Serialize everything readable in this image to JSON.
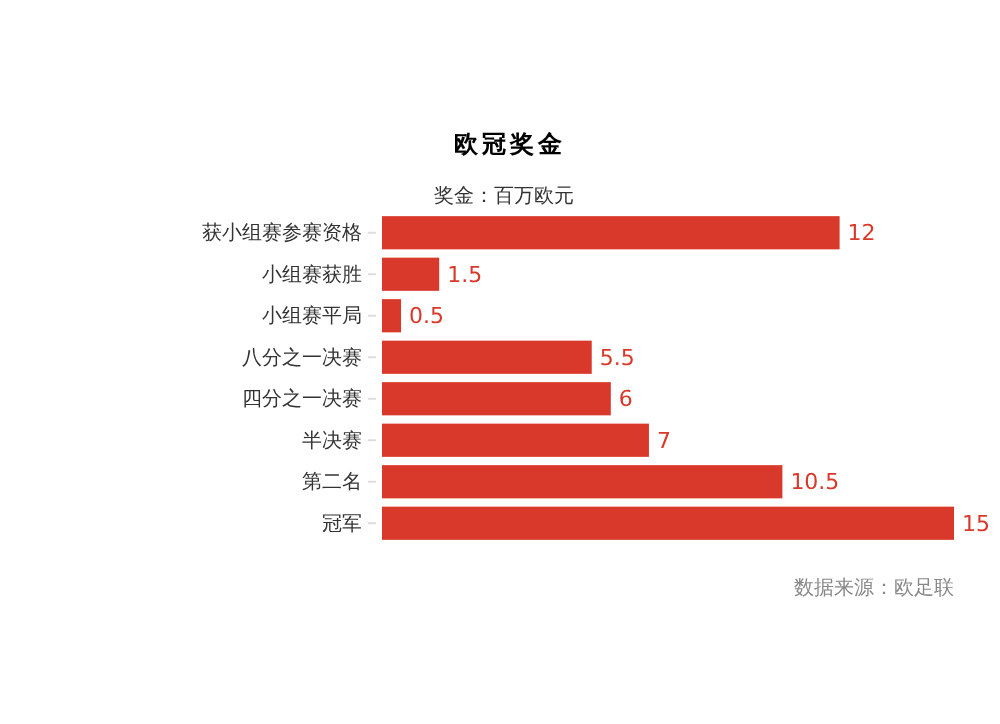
{
  "chart_data": {
    "type": "bar",
    "orientation": "horizontal",
    "title": "欧冠奖金",
    "subtitle": "奖金：百万欧元",
    "categories": [
      "获小组赛参赛资格",
      "小组赛获胜",
      "小组赛平局",
      "八分之一决赛",
      "四分之一决赛",
      "半决赛",
      "第二名",
      "冠军"
    ],
    "values": [
      12,
      1.5,
      0.5,
      5.5,
      6,
      7,
      10.5,
      15
    ],
    "color": "#d9392b",
    "data_labels": true,
    "annotations": [
      "数据来源：欧足联"
    ]
  }
}
